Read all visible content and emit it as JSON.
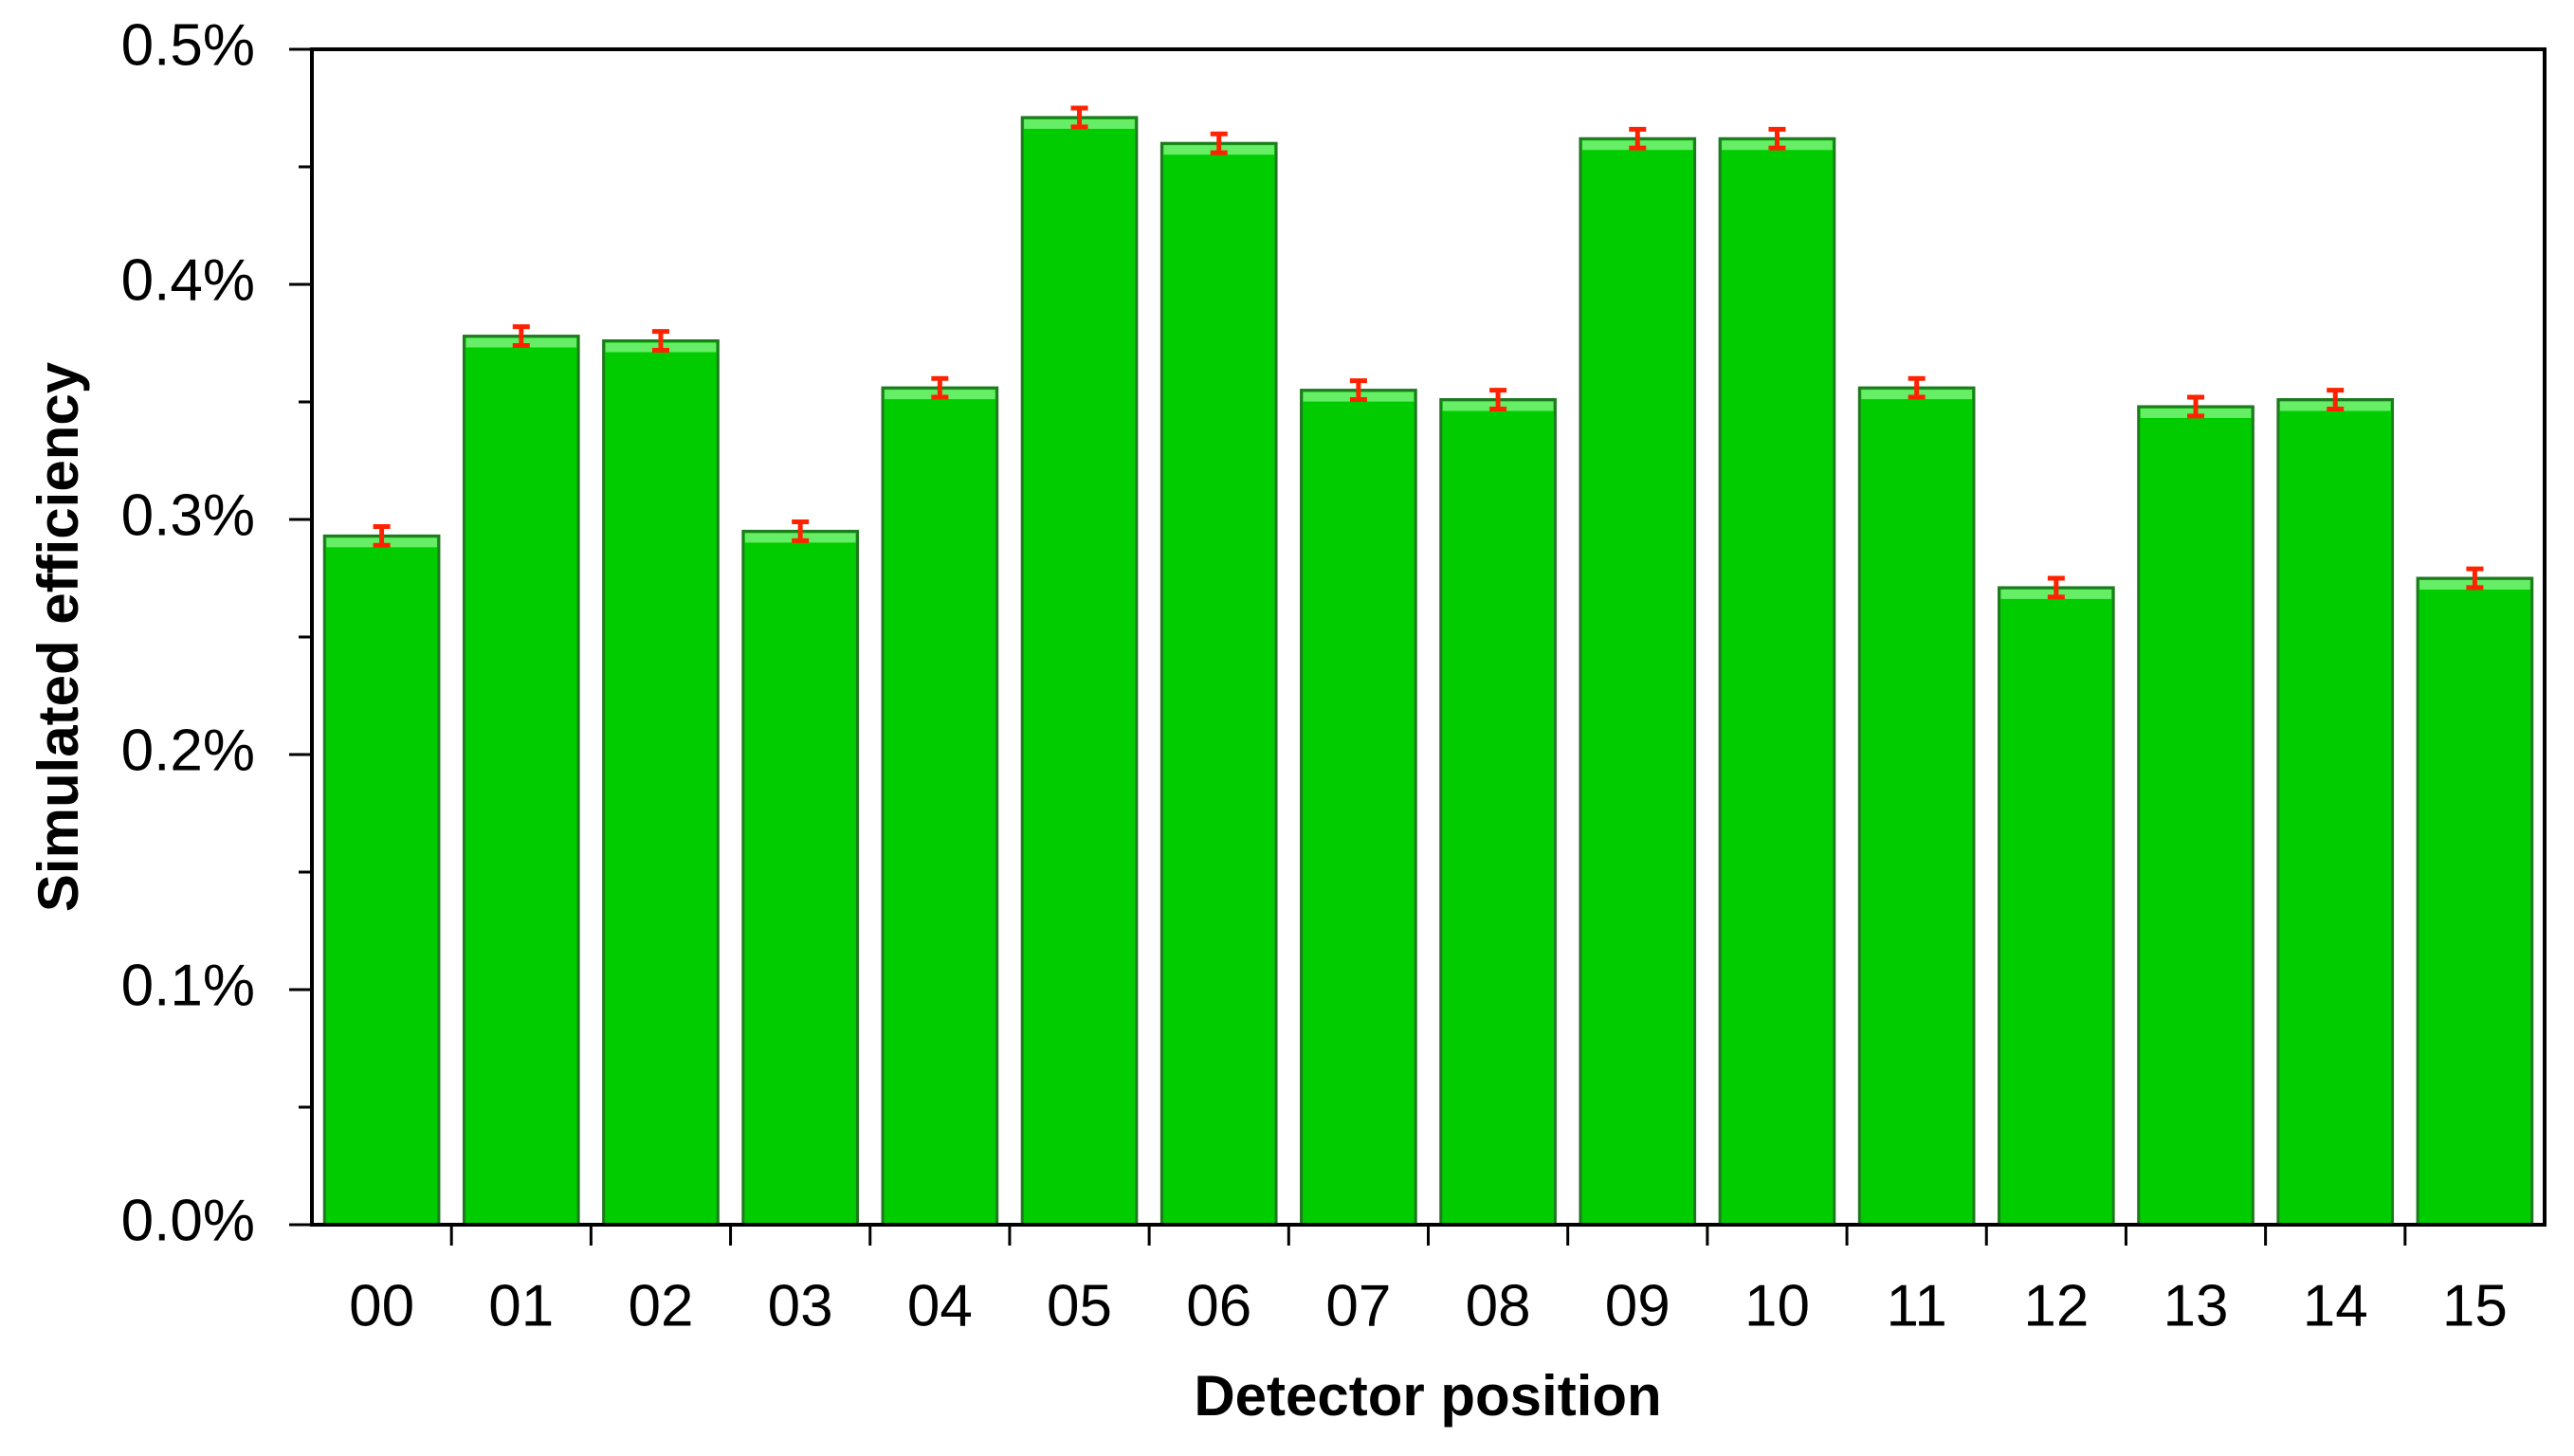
{
  "chart_data": {
    "type": "bar",
    "xlabel": "Detector position",
    "ylabel": "Simulated efficiency",
    "categories": [
      "00",
      "01",
      "02",
      "03",
      "04",
      "05",
      "06",
      "07",
      "08",
      "09",
      "10",
      "11",
      "12",
      "13",
      "14",
      "15"
    ],
    "values": [
      0.293,
      0.378,
      0.376,
      0.295,
      0.356,
      0.471,
      0.46,
      0.355,
      0.351,
      0.462,
      0.462,
      0.356,
      0.271,
      0.348,
      0.351,
      0.275
    ],
    "errors": [
      0.004,
      0.004,
      0.004,
      0.004,
      0.004,
      0.004,
      0.004,
      0.004,
      0.004,
      0.004,
      0.004,
      0.004,
      0.004,
      0.004,
      0.004,
      0.004
    ],
    "color": "#00cc00",
    "error_color": "#ff2200",
    "ylim": [
      0,
      0.5
    ],
    "yticks": [
      {
        "value": 0,
        "label": "0.0%"
      },
      {
        "value": 0.1,
        "label": "0.1%"
      },
      {
        "value": 0.2,
        "label": "0.2%"
      },
      {
        "value": 0.3,
        "label": "0.3%"
      },
      {
        "value": 0.4,
        "label": "0.4%"
      },
      {
        "value": 0.5,
        "label": "0.5%"
      }
    ],
    "grid": false
  }
}
